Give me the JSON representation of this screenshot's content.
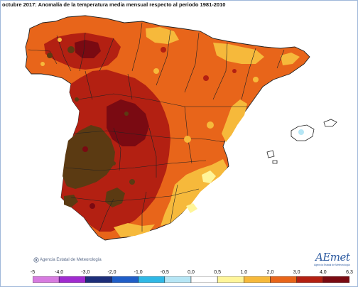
{
  "title": "octubre 2017: Anomalía de la temperatura media mensual respecto al periodo 1981-2010",
  "agency": "Agencia Estatal de Meteorología",
  "logo": {
    "text": "AEmet",
    "subtitle": "Agencia Estatal de Meteorología"
  },
  "legend": {
    "ticks": [
      "-5",
      "-4,0",
      "-3,0",
      "-2,0",
      "-1,0",
      "-0,5",
      "0,0",
      "0,5",
      "1,0",
      "2,0",
      "3,0",
      "4,0",
      "6,3"
    ],
    "colors": [
      "#d77be0",
      "#a02bd0",
      "#1d2e7a",
      "#1f5ec8",
      "#2fb8e6",
      "#b6e6f5",
      "#ffffff",
      "#fff59a",
      "#f6b93b",
      "#e8651a",
      "#b32012",
      "#7a0a12",
      "#5b3a12"
    ]
  },
  "map_colors": {
    "a1": "#e8651a",
    "a2": "#f6b93b",
    "a3": "#b32012",
    "a4": "#7a0a12",
    "a5": "#5b3a12",
    "a6": "#fff59a",
    "a7": "#ffffff"
  }
}
